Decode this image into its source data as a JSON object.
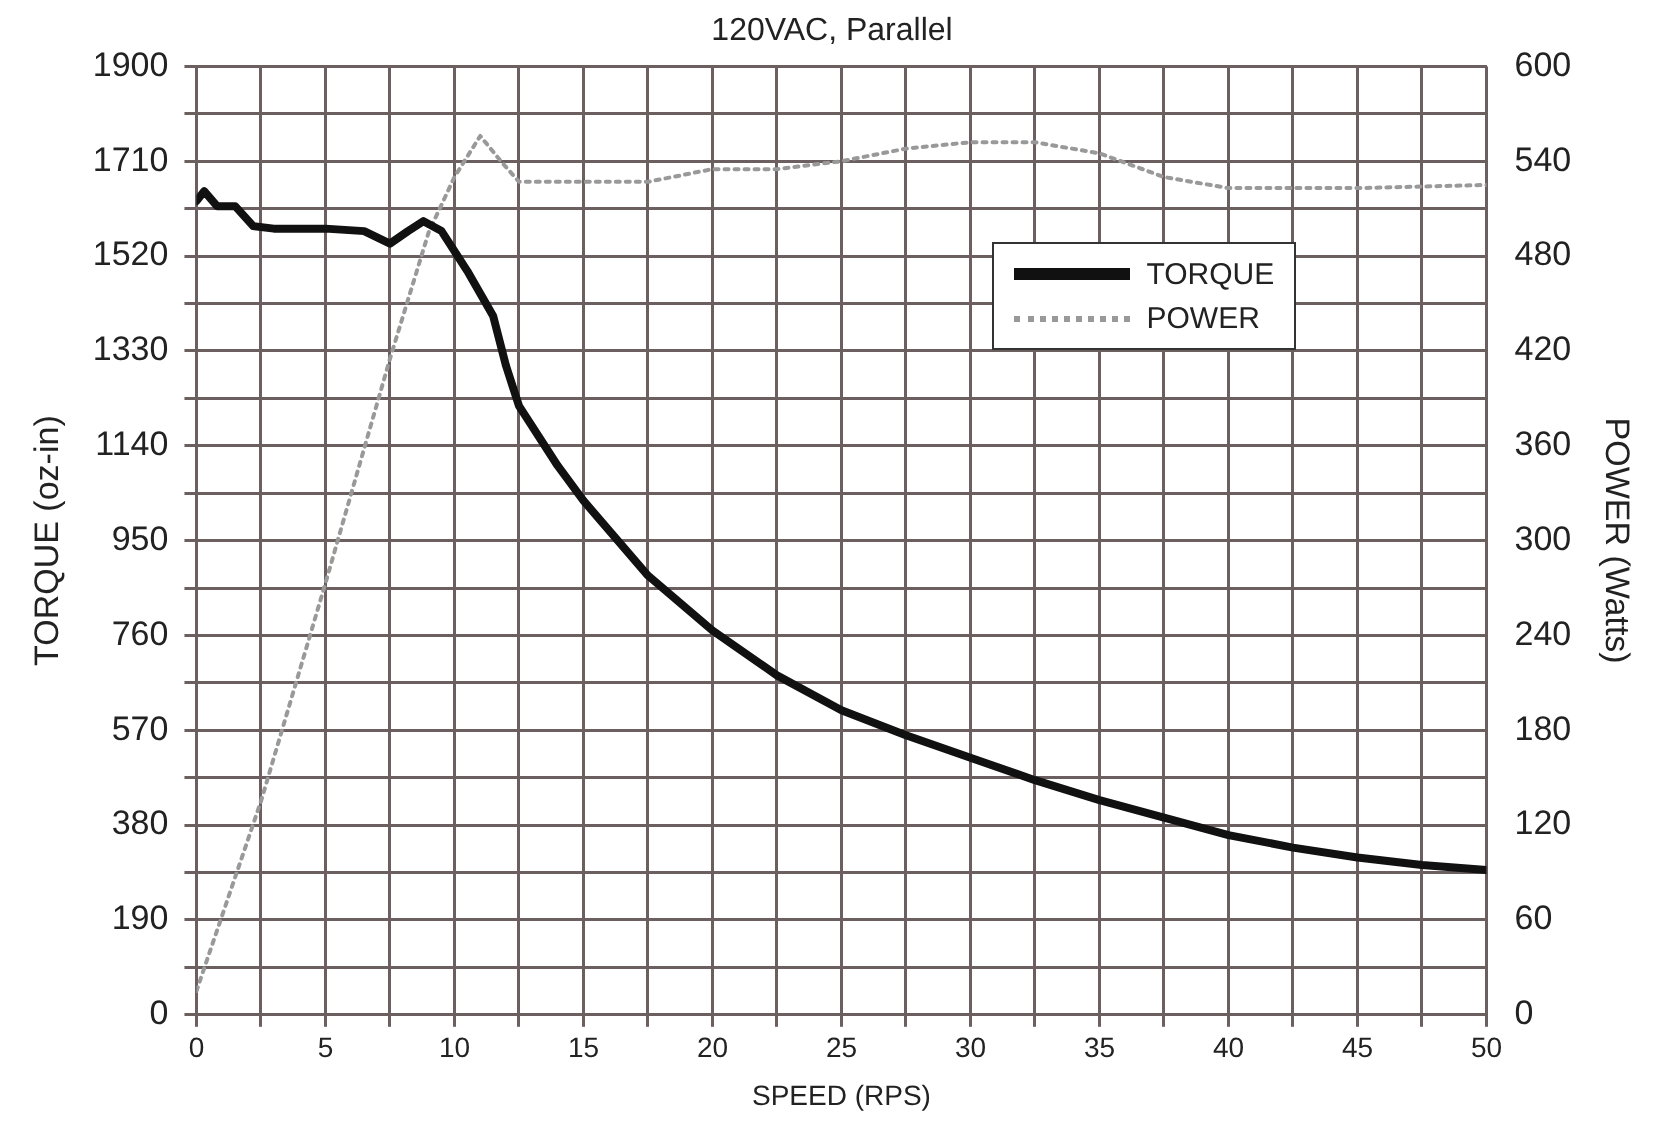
{
  "chart_data": {
    "type": "line",
    "title": "120VAC, Parallel",
    "xlabel": "SPEED (RPS)",
    "ylabel": "TORQUE (oz-in)",
    "y2label": "POWER (Watts)",
    "xlim": [
      0,
      50
    ],
    "xticks": [
      0,
      {
        "value": 2.5,
        "label": null
      },
      5,
      {
        "value": 7.5,
        "label": null
      },
      10,
      {
        "value": 12.5,
        "label": null
      },
      15,
      {
        "value": 17.5,
        "label": null
      },
      20,
      {
        "value": 22.5,
        "label": null
      },
      25,
      {
        "value": 27.5,
        "label": null
      },
      30,
      {
        "value": 32.5,
        "label": null
      },
      35,
      {
        "value": 37.5,
        "label": null
      },
      40,
      {
        "value": 42.5,
        "label": null
      },
      45,
      {
        "value": 47.5,
        "label": null
      },
      50
    ],
    "ylim": [
      0,
      1900
    ],
    "yticks": [
      0,
      {
        "value": 95,
        "label": null
      },
      190,
      {
        "value": 285,
        "label": null
      },
      380,
      {
        "value": 475,
        "label": null
      },
      570,
      {
        "value": 665,
        "label": null
      },
      760,
      {
        "value": 855,
        "label": null
      },
      950,
      {
        "value": 1045,
        "label": null
      },
      1140,
      {
        "value": 1235,
        "label": null
      },
      1330,
      {
        "value": 1425,
        "label": null
      },
      1520,
      {
        "value": 1615,
        "label": null
      },
      1710,
      {
        "value": 1805,
        "label": null
      },
      1900
    ],
    "y2lim": [
      0,
      600
    ],
    "y2ticks": [
      0,
      60,
      120,
      180,
      240,
      300,
      360,
      420,
      480,
      540,
      600
    ],
    "grid": true,
    "legend": "top right",
    "marker": "none",
    "series": [
      {
        "name": "TORQUE",
        "color": "#111111",
        "line_style": "solid",
        "x": [
          0,
          0.3,
          0.8,
          1.5,
          2.2,
          3,
          5,
          6.5,
          7.5,
          8.2,
          8.8,
          9.5,
          10.5,
          11.5,
          12,
          12.5,
          14,
          15,
          17.5,
          20,
          22.5,
          25,
          27.5,
          30,
          32.5,
          35,
          37.5,
          40,
          42.5,
          45,
          47.5,
          50
        ],
        "values": [
          1630,
          1650,
          1620,
          1620,
          1580,
          1575,
          1575,
          1570,
          1545,
          1570,
          1590,
          1570,
          1490,
          1400,
          1300,
          1220,
          1100,
          1030,
          880,
          770,
          680,
          610,
          560,
          515,
          470,
          430,
          395,
          360,
          335,
          315,
          300,
          290
        ]
      },
      {
        "name": "POWER",
        "color": "#999999",
        "line_style": "dotted",
        "axis": "y2",
        "x": [
          0,
          2.5,
          5,
          7.5,
          9,
          10,
          11,
          11.8,
          12.5,
          15,
          17.5,
          20,
          22.5,
          25,
          27.5,
          30,
          32.5,
          35,
          37.5,
          40,
          45,
          50
        ],
        "values": [
          15,
          135,
          273,
          415,
          495,
          530,
          556,
          540,
          527,
          527,
          527,
          535,
          535,
          540,
          548,
          552,
          552,
          545,
          530,
          523,
          523,
          525
        ]
      }
    ]
  }
}
